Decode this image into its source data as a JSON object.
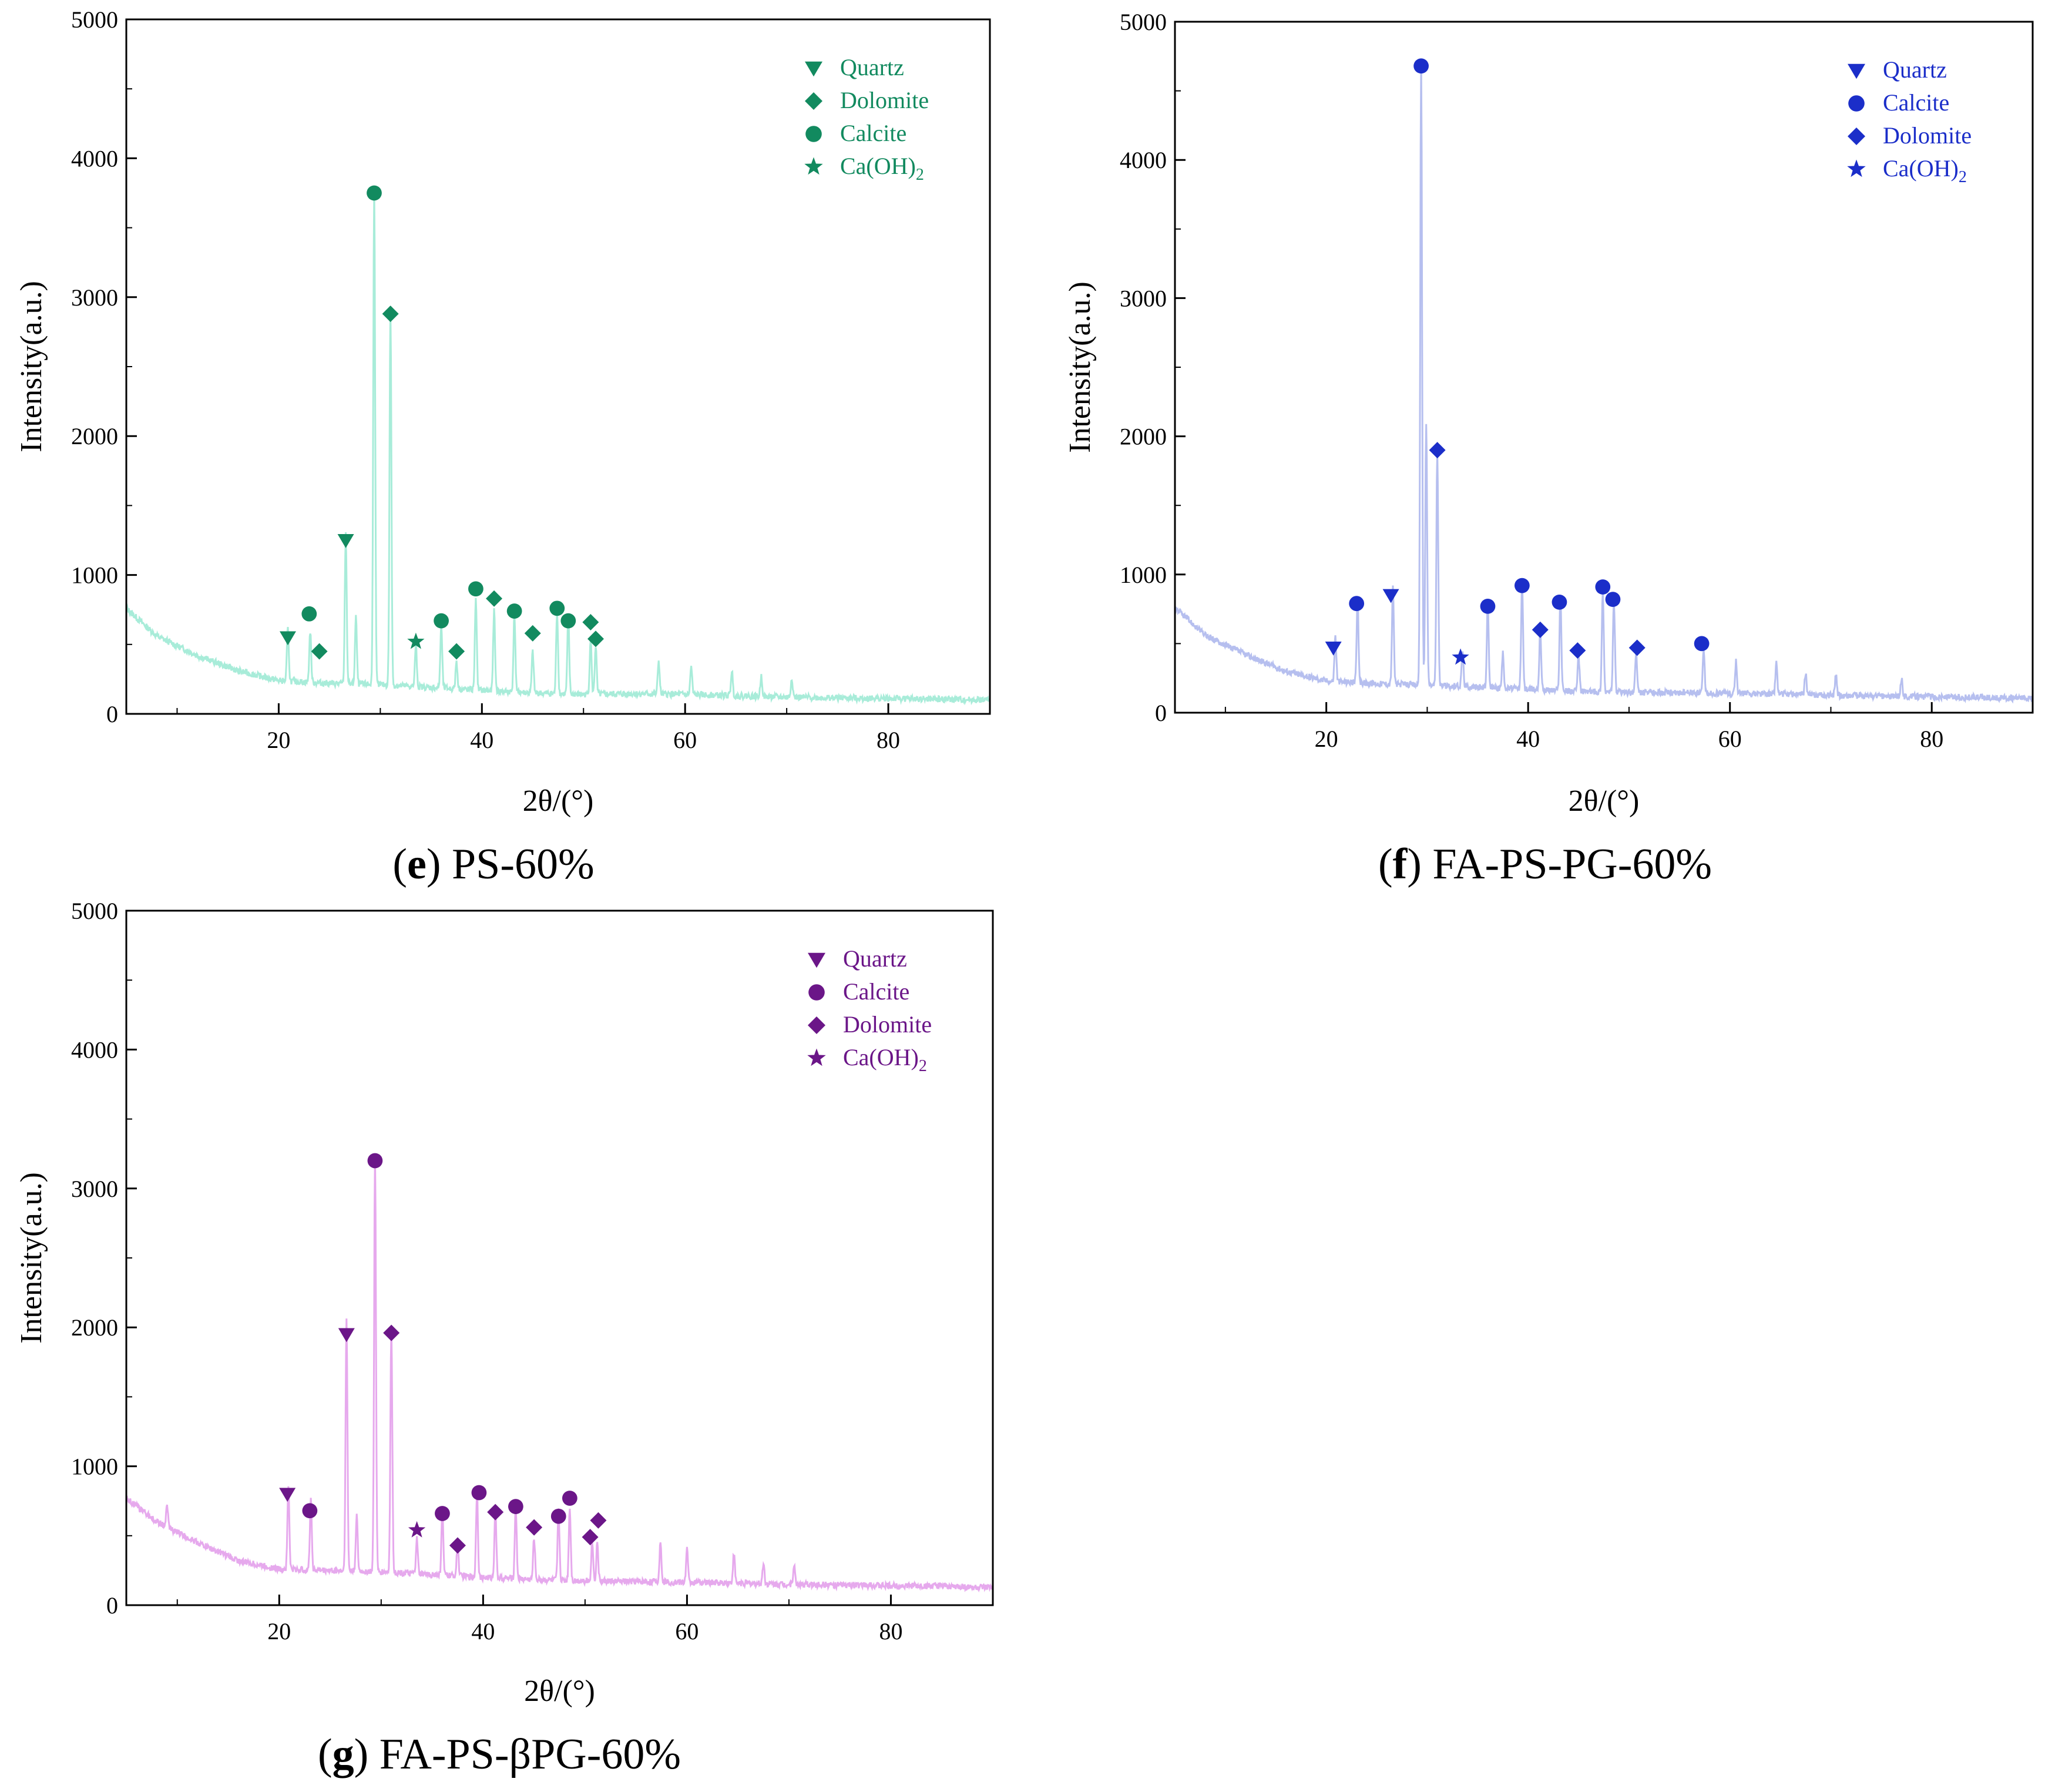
{
  "chart_data": [
    {
      "type": "line",
      "letter": "e",
      "caption": "PS-60%",
      "xlabel": "2θ/(°)",
      "ylabel": "Intensity(a.u.)",
      "xlim": [
        5,
        90
      ],
      "ylim": [
        0,
        5000
      ],
      "xticks": [
        20,
        40,
        60,
        80
      ],
      "yticks": [
        0,
        1000,
        2000,
        3000,
        4000,
        5000
      ],
      "line_color": "#a8ecd9",
      "marker_color": "#128a5f",
      "legend_position": "top-right",
      "legend": [
        {
          "name": "Quartz",
          "marker": "triangle-down"
        },
        {
          "name": "Dolomite",
          "marker": "diamond"
        },
        {
          "name": "Calcite",
          "marker": "circle"
        },
        {
          "name": "Ca(OH)",
          "sub": "2",
          "marker": "star"
        }
      ],
      "series": {
        "baseline": [
          [
            5,
            760
          ],
          [
            8,
            560
          ],
          [
            12,
            420
          ],
          [
            16,
            310
          ],
          [
            20,
            240
          ],
          [
            25,
            220
          ],
          [
            30,
            210
          ],
          [
            35,
            190
          ],
          [
            40,
            170
          ],
          [
            45,
            150
          ],
          [
            50,
            140
          ],
          [
            55,
            145
          ],
          [
            60,
            140
          ],
          [
            65,
            130
          ],
          [
            70,
            120
          ],
          [
            75,
            115
          ],
          [
            80,
            110
          ],
          [
            85,
            105
          ],
          [
            90,
            100
          ]
        ],
        "peaks": [
          [
            20.9,
            380
          ],
          [
            23.1,
            370
          ],
          [
            26.6,
            1080
          ],
          [
            27.6,
            480
          ],
          [
            29.4,
            3600
          ],
          [
            31.0,
            2720
          ],
          [
            33.5,
            300
          ],
          [
            36.0,
            450
          ],
          [
            37.5,
            200
          ],
          [
            39.4,
            670
          ],
          [
            41.2,
            580
          ],
          [
            43.2,
            560
          ],
          [
            45.0,
            300
          ],
          [
            47.4,
            600
          ],
          [
            48.5,
            560
          ],
          [
            50.7,
            400
          ],
          [
            51.2,
            350
          ],
          [
            57.4,
            240
          ],
          [
            60.6,
            200
          ],
          [
            64.6,
            180
          ],
          [
            67.5,
            150
          ],
          [
            70.5,
            140
          ]
        ]
      },
      "markers": [
        {
          "type": "triangle-down",
          "x": 20.9,
          "y": 550
        },
        {
          "type": "circle",
          "x": 23.0,
          "y": 720
        },
        {
          "type": "diamond",
          "x": 24.0,
          "y": 450
        },
        {
          "type": "triangle-down",
          "x": 26.6,
          "y": 1250
        },
        {
          "type": "circle",
          "x": 29.4,
          "y": 3750
        },
        {
          "type": "diamond",
          "x": 31.0,
          "y": 2880
        },
        {
          "type": "star",
          "x": 33.5,
          "y": 520
        },
        {
          "type": "circle",
          "x": 36.0,
          "y": 670
        },
        {
          "type": "diamond",
          "x": 37.5,
          "y": 450
        },
        {
          "type": "circle",
          "x": 39.4,
          "y": 900
        },
        {
          "type": "diamond",
          "x": 41.2,
          "y": 830
        },
        {
          "type": "circle",
          "x": 43.2,
          "y": 740
        },
        {
          "type": "diamond",
          "x": 45.0,
          "y": 580
        },
        {
          "type": "circle",
          "x": 47.4,
          "y": 760
        },
        {
          "type": "circle",
          "x": 48.5,
          "y": 670
        },
        {
          "type": "diamond",
          "x": 50.7,
          "y": 660
        },
        {
          "type": "diamond",
          "x": 51.2,
          "y": 540
        }
      ]
    },
    {
      "type": "line",
      "letter": "f",
      "caption": "FA-PS-PG-60%",
      "xlabel": "2θ/(°)",
      "ylabel": "Intensity(a.u.)",
      "xlim": [
        5,
        90
      ],
      "ylim": [
        0,
        5000
      ],
      "xticks": [
        20,
        40,
        60,
        80
      ],
      "yticks": [
        0,
        1000,
        2000,
        3000,
        4000,
        5000
      ],
      "line_color": "#b6bfef",
      "marker_color": "#1b2ec9",
      "legend_position": "top-right",
      "legend": [
        {
          "name": "Quartz",
          "marker": "triangle-down"
        },
        {
          "name": "Calcite",
          "marker": "circle"
        },
        {
          "name": "Dolomite",
          "marker": "diamond"
        },
        {
          "name": "Ca(OH)",
          "sub": "2",
          "marker": "star"
        }
      ],
      "series": {
        "baseline": [
          [
            5,
            760
          ],
          [
            8,
            560
          ],
          [
            12,
            420
          ],
          [
            16,
            300
          ],
          [
            20,
            230
          ],
          [
            25,
            210
          ],
          [
            30,
            200
          ],
          [
            35,
            185
          ],
          [
            40,
            170
          ],
          [
            45,
            155
          ],
          [
            50,
            145
          ],
          [
            55,
            145
          ],
          [
            60,
            140
          ],
          [
            65,
            135
          ],
          [
            70,
            125
          ],
          [
            75,
            120
          ],
          [
            80,
            115
          ],
          [
            85,
            110
          ],
          [
            90,
            100
          ]
        ],
        "peaks": [
          [
            20.9,
            330
          ],
          [
            23.1,
            580
          ],
          [
            26.6,
            700
          ],
          [
            29.4,
            4500
          ],
          [
            29.9,
            1900
          ],
          [
            31.0,
            1700
          ],
          [
            33.5,
            260
          ],
          [
            36.0,
            600
          ],
          [
            37.5,
            250
          ],
          [
            39.4,
            780
          ],
          [
            41.2,
            440
          ],
          [
            43.2,
            680
          ],
          [
            45.0,
            250
          ],
          [
            47.4,
            740
          ],
          [
            48.5,
            680
          ],
          [
            50.7,
            290
          ],
          [
            57.4,
            300
          ],
          [
            60.6,
            230
          ],
          [
            64.6,
            230
          ],
          [
            67.5,
            160
          ],
          [
            70.5,
            150
          ],
          [
            77.0,
            130
          ]
        ]
      },
      "markers": [
        {
          "type": "triangle-down",
          "x": 20.7,
          "y": 470
        },
        {
          "type": "circle",
          "x": 23.0,
          "y": 790
        },
        {
          "type": "triangle-down",
          "x": 26.4,
          "y": 850
        },
        {
          "type": "circle",
          "x": 29.4,
          "y": 4680
        },
        {
          "type": "diamond",
          "x": 31.0,
          "y": 1900
        },
        {
          "type": "star",
          "x": 33.3,
          "y": 400
        },
        {
          "type": "circle",
          "x": 36.0,
          "y": 770
        },
        {
          "type": "circle",
          "x": 39.4,
          "y": 920
        },
        {
          "type": "diamond",
          "x": 41.2,
          "y": 600
        },
        {
          "type": "circle",
          "x": 43.1,
          "y": 800
        },
        {
          "type": "diamond",
          "x": 44.9,
          "y": 450
        },
        {
          "type": "circle",
          "x": 47.4,
          "y": 910
        },
        {
          "type": "circle",
          "x": 48.4,
          "y": 820
        },
        {
          "type": "diamond",
          "x": 50.8,
          "y": 470
        },
        {
          "type": "circle",
          "x": 57.2,
          "y": 500
        }
      ]
    },
    {
      "type": "line",
      "letter": "g",
      "caption": "FA-PS-βPG-60%",
      "xlabel": "2θ/(°)",
      "ylabel": "Intensity(a.u.)",
      "xlim": [
        5,
        90
      ],
      "ylim": [
        0,
        5000
      ],
      "xticks": [
        20,
        40,
        60,
        80
      ],
      "yticks": [
        0,
        1000,
        2000,
        3000,
        4000,
        5000
      ],
      "line_color": "#e6a9ed",
      "marker_color": "#6b1688",
      "legend_position": "top-right",
      "legend": [
        {
          "name": "Quartz",
          "marker": "triangle-down"
        },
        {
          "name": "Calcite",
          "marker": "circle"
        },
        {
          "name": "Dolomite",
          "marker": "diamond"
        },
        {
          "name": "Ca(OH)",
          "sub": "2",
          "marker": "star"
        }
      ],
      "series": {
        "baseline": [
          [
            5,
            770
          ],
          [
            8,
            600
          ],
          [
            12,
            450
          ],
          [
            16,
            320
          ],
          [
            20,
            260
          ],
          [
            25,
            250
          ],
          [
            30,
            240
          ],
          [
            35,
            220
          ],
          [
            40,
            200
          ],
          [
            45,
            185
          ],
          [
            50,
            175
          ],
          [
            55,
            170
          ],
          [
            60,
            165
          ],
          [
            65,
            160
          ],
          [
            70,
            150
          ],
          [
            75,
            145
          ],
          [
            80,
            140
          ],
          [
            85,
            135
          ],
          [
            90,
            125
          ]
        ],
        "peaks": [
          [
            9.0,
            150
          ],
          [
            20.9,
            600
          ],
          [
            23.1,
            520
          ],
          [
            26.6,
            1800
          ],
          [
            27.6,
            400
          ],
          [
            29.4,
            3000
          ],
          [
            31.0,
            1780
          ],
          [
            33.5,
            250
          ],
          [
            36.0,
            470
          ],
          [
            37.5,
            220
          ],
          [
            39.4,
            620
          ],
          [
            41.2,
            500
          ],
          [
            43.2,
            520
          ],
          [
            45.0,
            300
          ],
          [
            47.4,
            500
          ],
          [
            48.5,
            530
          ],
          [
            50.7,
            290
          ],
          [
            51.2,
            280
          ],
          [
            57.4,
            300
          ],
          [
            60.0,
            240
          ],
          [
            64.6,
            210
          ],
          [
            67.5,
            150
          ],
          [
            70.5,
            140
          ]
        ]
      },
      "markers": [
        {
          "type": "triangle-down",
          "x": 20.8,
          "y": 800
        },
        {
          "type": "circle",
          "x": 23.0,
          "y": 680
        },
        {
          "type": "triangle-down",
          "x": 26.6,
          "y": 1950
        },
        {
          "type": "circle",
          "x": 29.4,
          "y": 3200
        },
        {
          "type": "diamond",
          "x": 31.0,
          "y": 1960
        },
        {
          "type": "star",
          "x": 33.5,
          "y": 540
        },
        {
          "type": "circle",
          "x": 36.0,
          "y": 660
        },
        {
          "type": "diamond",
          "x": 37.5,
          "y": 430
        },
        {
          "type": "circle",
          "x": 39.6,
          "y": 810
        },
        {
          "type": "diamond",
          "x": 41.2,
          "y": 670
        },
        {
          "type": "circle",
          "x": 43.2,
          "y": 710
        },
        {
          "type": "diamond",
          "x": 45.0,
          "y": 560
        },
        {
          "type": "circle",
          "x": 47.4,
          "y": 640
        },
        {
          "type": "circle",
          "x": 48.5,
          "y": 770
        },
        {
          "type": "diamond",
          "x": 50.5,
          "y": 490
        },
        {
          "type": "diamond",
          "x": 51.3,
          "y": 610
        }
      ]
    }
  ]
}
